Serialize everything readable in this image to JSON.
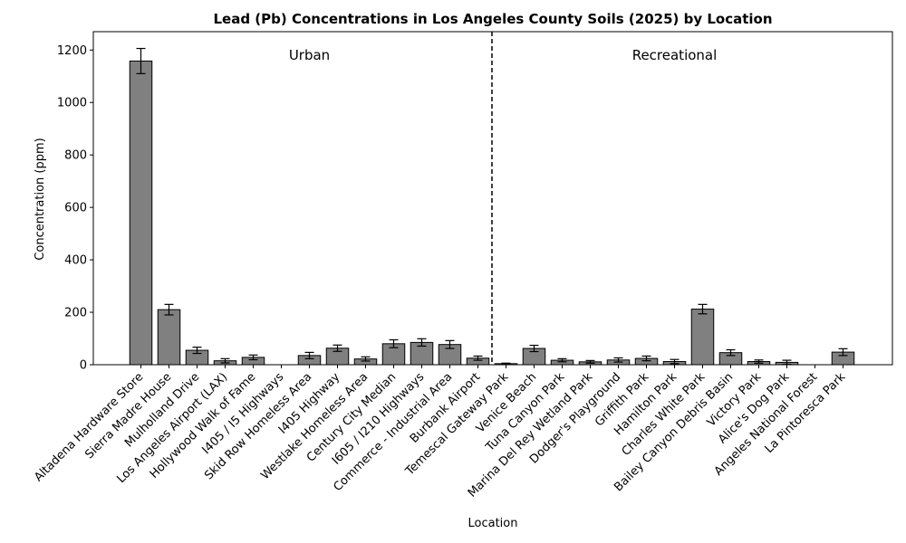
{
  "chart_data": {
    "type": "bar",
    "title": "Lead (Pb) Concentrations in Los Angeles County Soils (2025) by Location",
    "xlabel": "Location",
    "ylabel": "Concentration (ppm)",
    "ylim": [
      0,
      1270
    ],
    "yticks": [
      "0",
      "200",
      "400",
      "600",
      "800",
      "1000",
      "1200"
    ],
    "grid": false,
    "bar_color": "#808080",
    "edge_color": "#000000",
    "categories": [
      "Altadena Hardware Store",
      "Sierra Madre House",
      "Mulholland Drive",
      "Los Angeles Airport (LAX)",
      "Hollywood Walk of Fame",
      "I405 / I5 Highways",
      "Skid Row Homeless Area",
      "I405 Highway",
      "Westlake Homeless Area",
      "Century City Median",
      "I605 / I210 Highways",
      "Commerce - Industrial Area",
      "Burbank Airport",
      "Temescal Gateway Park",
      "Venice Beach",
      "Tuna Canyon Park",
      "Marina Del Rey Wetland Park",
      "Dodger's Playground",
      "Griffith Park",
      "Hamilton Park",
      "Charles White Park",
      "Bailey Canyon Debris Basin",
      "Victory Park",
      "Alice's Dog Park",
      "Angeles National Forest",
      "La Pintoresca Park"
    ],
    "values": [
      1158,
      210,
      55,
      15,
      28,
      0,
      35,
      63,
      22,
      80,
      85,
      77,
      25,
      4,
      62,
      17,
      11,
      18,
      24,
      12,
      212,
      46,
      12,
      9,
      0,
      48
    ],
    "errors": [
      48,
      20,
      12,
      8,
      9,
      0,
      12,
      12,
      8,
      15,
      14,
      15,
      8,
      2,
      12,
      6,
      5,
      8,
      9,
      8,
      18,
      11,
      6,
      8,
      0,
      13
    ],
    "groups": [
      {
        "label": "Urban",
        "start": 0,
        "end": 12
      },
      {
        "label": "Recreational",
        "start": 13,
        "end": 25
      }
    ],
    "divider_after_index": 12
  }
}
